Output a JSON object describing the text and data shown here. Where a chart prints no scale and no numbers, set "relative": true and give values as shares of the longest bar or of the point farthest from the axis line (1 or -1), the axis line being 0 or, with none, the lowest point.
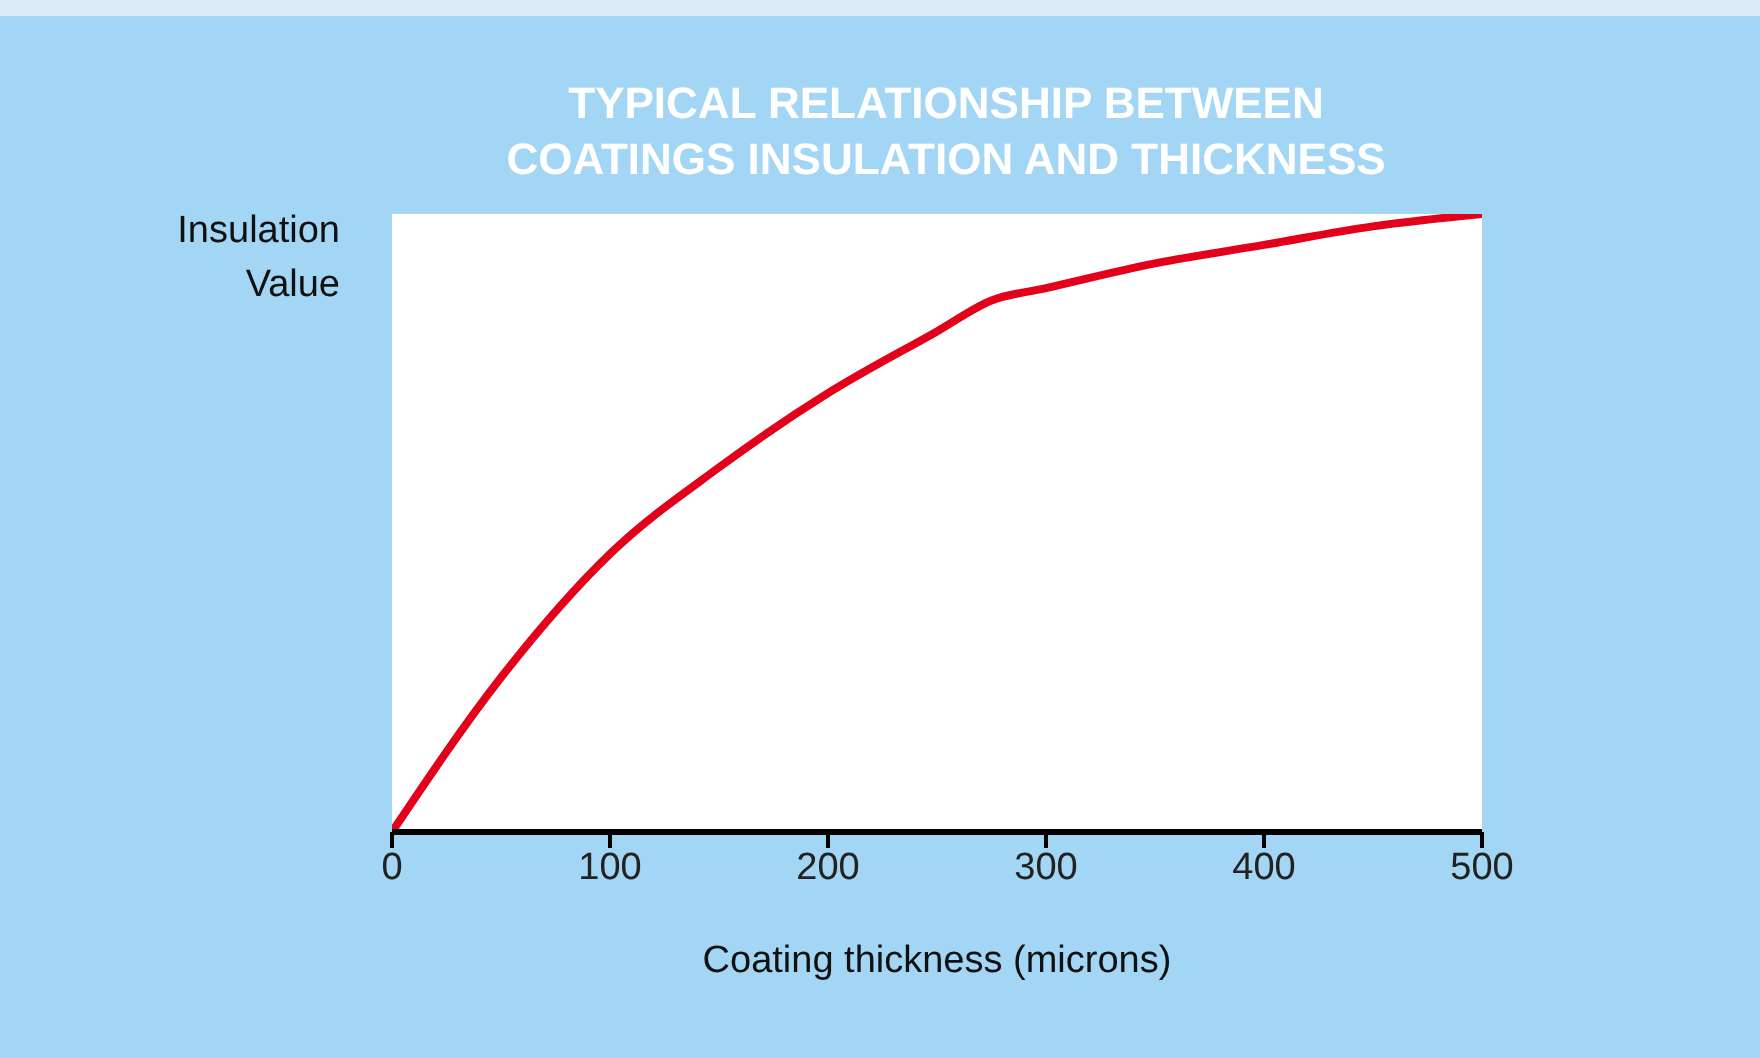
{
  "chart_data": {
    "type": "line",
    "title": "TYPICAL RELATIONSHIP BETWEEN\nCOATINGS INSULATION AND THICKNESS",
    "xlabel": "Coating thickness (microns)",
    "ylabel": "Insulation\nValue",
    "relative": true,
    "x": [
      0,
      50,
      100,
      150,
      200,
      250,
      275,
      300,
      350,
      400,
      450,
      500
    ],
    "series": [
      {
        "color": "#e2001a",
        "values": [
          0,
          0.25,
          0.45,
          0.59,
          0.71,
          0.81,
          0.86,
          0.88,
          0.92,
          0.95,
          0.98,
          1
        ]
      }
    ],
    "xlim": [
      0,
      500
    ],
    "xticks": [
      0,
      100,
      200,
      300,
      400,
      500
    ],
    "grid": false,
    "legend": false,
    "marker": "none",
    "line_style": "solid"
  }
}
